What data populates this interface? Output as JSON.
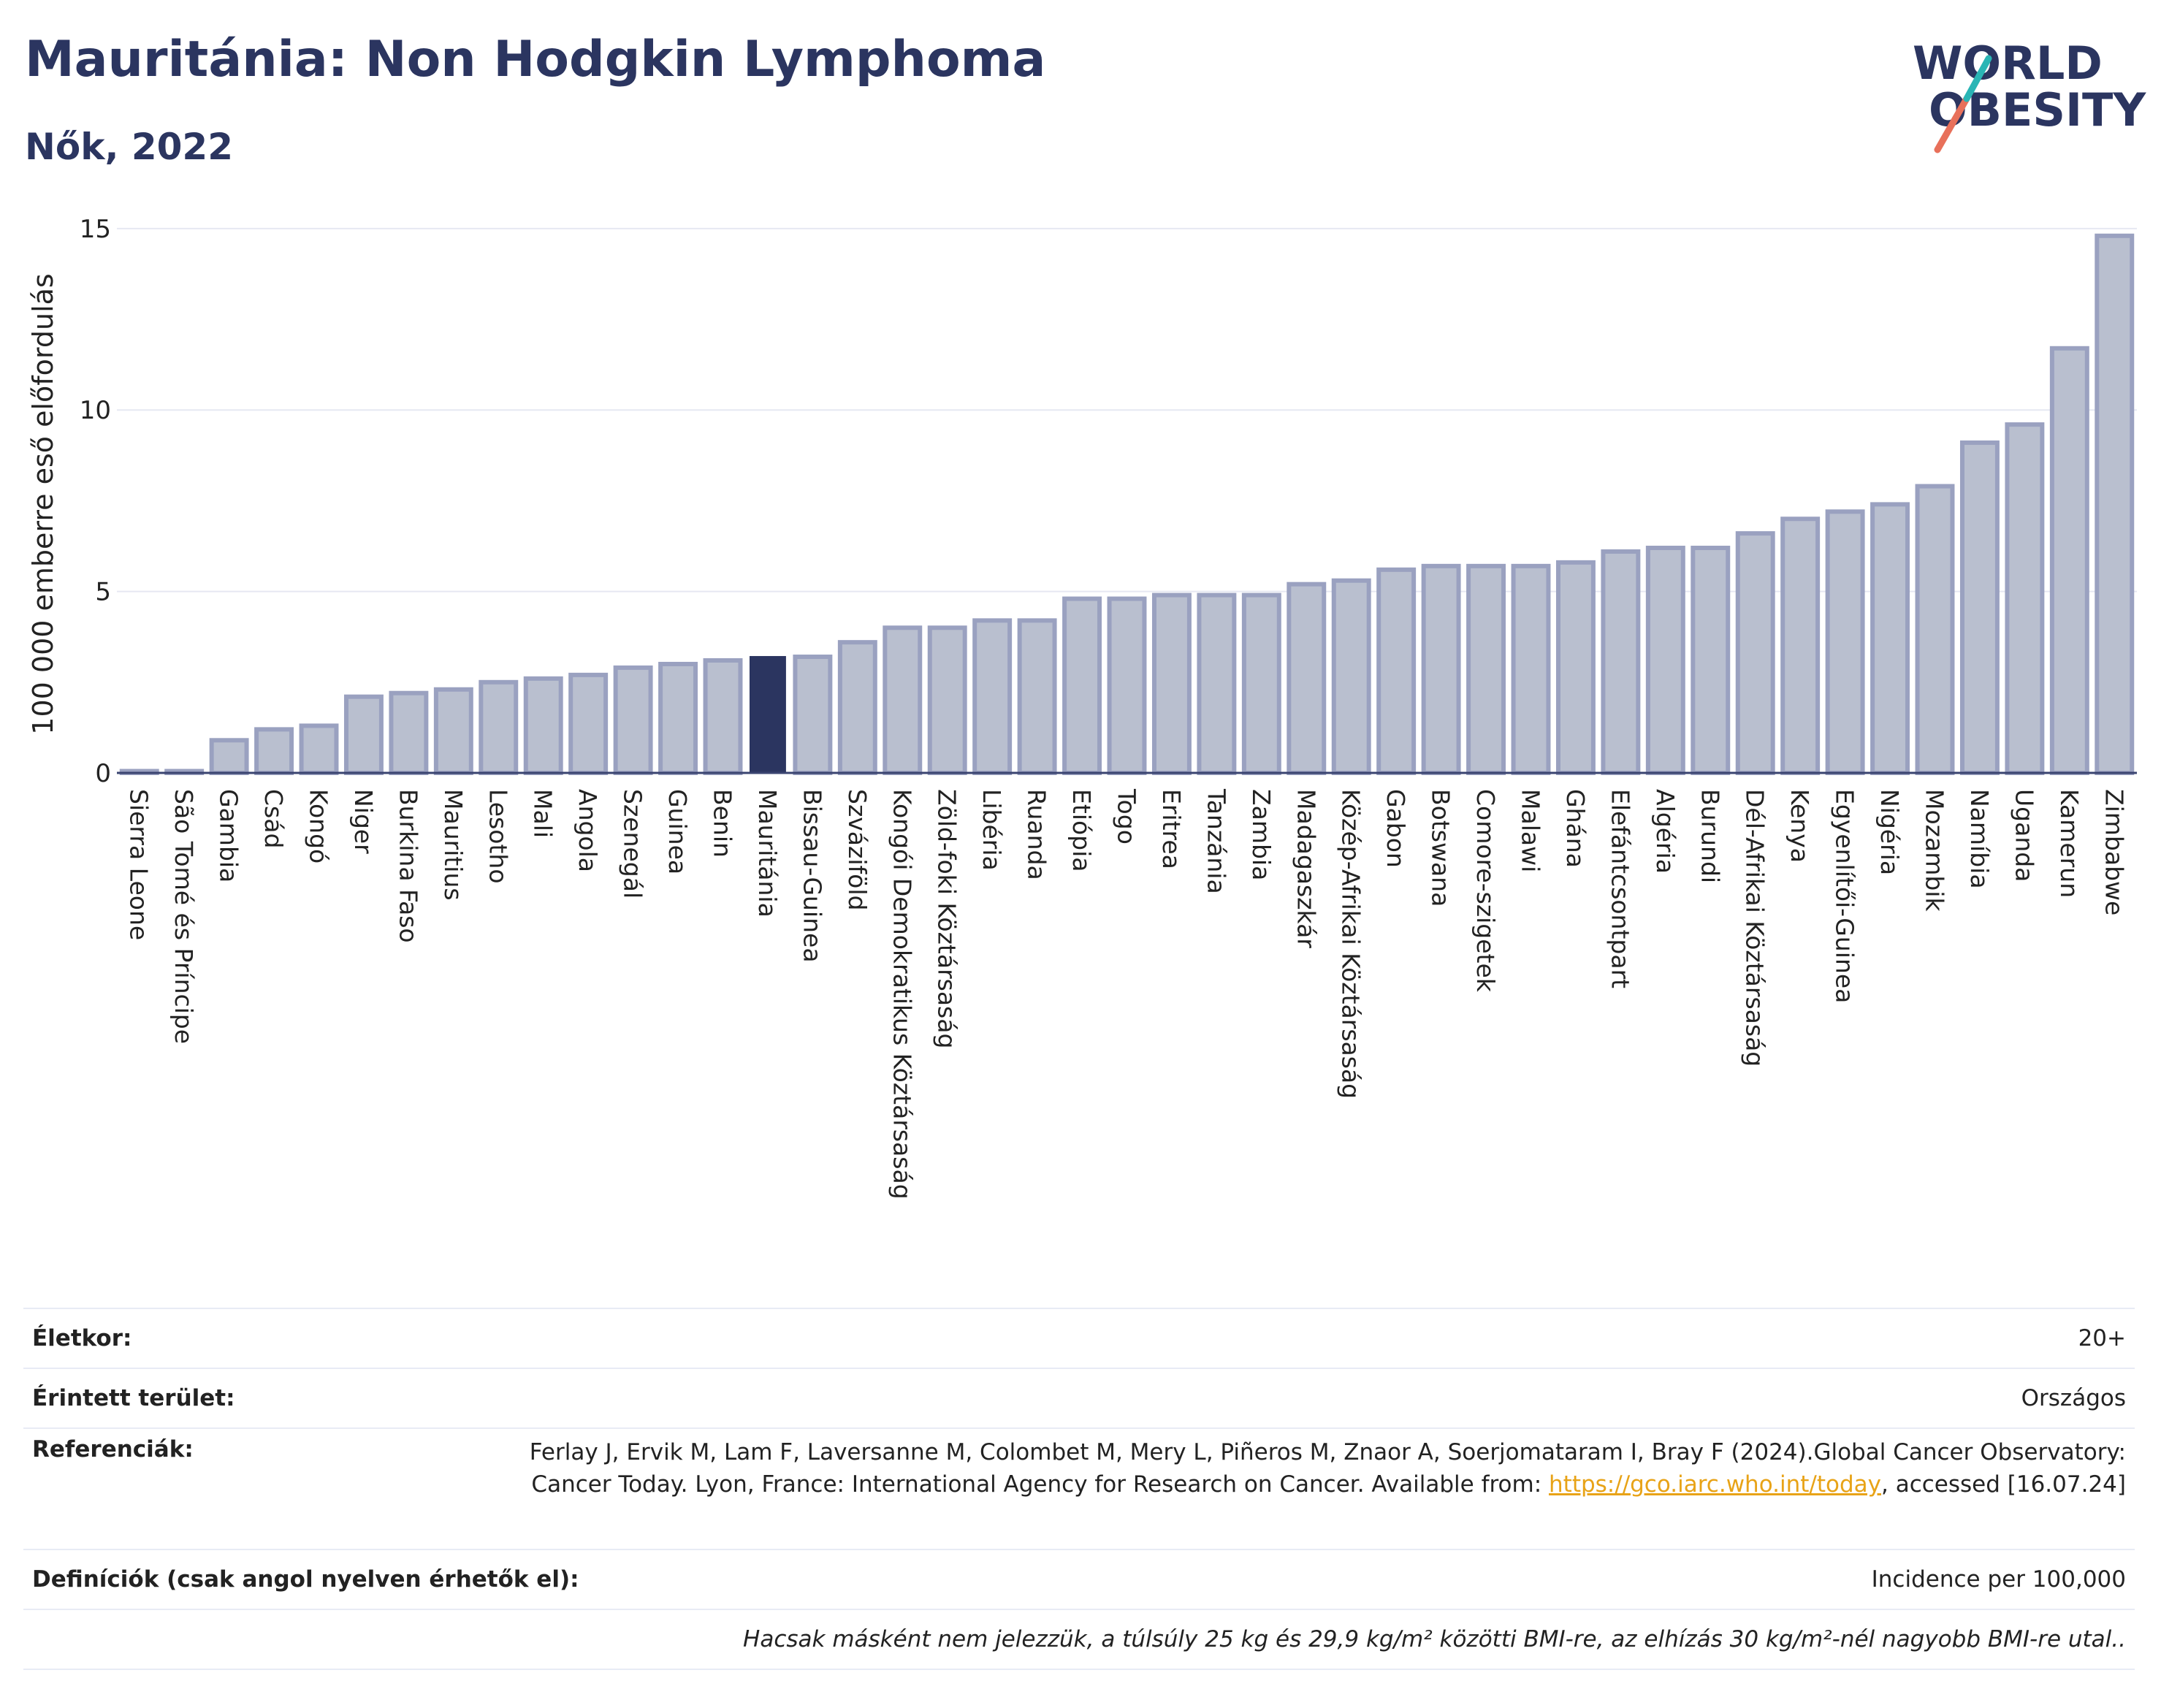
{
  "header": {
    "title": "Mauritánia: Non Hodgkin Lymphoma",
    "subtitle": "Nők, 2022"
  },
  "logo": {
    "line1": "WORLD",
    "line2": "OBESITY"
  },
  "colors": {
    "bar": "#b9bfcf",
    "bar_border": "#9aa1c0",
    "highlight": "#2b3560",
    "title": "#2b3560",
    "grid": "#e6e8f2",
    "link": "#e8a317"
  },
  "chart_data": {
    "type": "bar",
    "ylabel": "100 000 emberre eső előfordulás",
    "ylim": [
      0,
      15.5
    ],
    "yticks": [
      0,
      5,
      10,
      15
    ],
    "grid": true,
    "highlight": "Mauritánia",
    "categories": [
      "Sierra Leone",
      "São Tomé és Príncipe",
      "Gambia",
      "Csád",
      "Kongó",
      "Niger",
      "Burkina Faso",
      "Mauritius",
      "Lesotho",
      "Mali",
      "Angola",
      "Szenegál",
      "Guinea",
      "Benin",
      "Mauritánia",
      "Bissau-Guinea",
      "Szváziföld",
      "Kongói Demokratikus Köztársaság",
      "Zöld-foki Köztársaság",
      "Libéria",
      "Ruanda",
      "Etiópia",
      "Togo",
      "Eritrea",
      "Tanzánia",
      "Zambia",
      "Madagaszkár",
      "Közép-Afrikai Köztársaság",
      "Gabon",
      "Botswana",
      "Comore-szigetek",
      "Malawi",
      "Ghána",
      "Elefántcsontpart",
      "Algéria",
      "Burundi",
      "Dél-Afrikai Köztársaság",
      "Kenya",
      "Egyenlítői-Guinea",
      "Nigéria",
      "Mozambik",
      "Namíbia",
      "Uganda",
      "Kamerun",
      "Zimbabwe"
    ],
    "values": [
      0.05,
      0.05,
      0.9,
      1.2,
      1.3,
      2.1,
      2.2,
      2.3,
      2.5,
      2.6,
      2.7,
      2.9,
      3.0,
      3.1,
      3.2,
      3.2,
      3.6,
      4.0,
      4.0,
      4.2,
      4.2,
      4.8,
      4.8,
      4.9,
      4.9,
      4.9,
      5.2,
      5.3,
      5.6,
      5.7,
      5.7,
      5.7,
      5.8,
      6.1,
      6.2,
      6.2,
      6.6,
      7.0,
      7.2,
      7.4,
      7.9,
      9.1,
      9.6,
      11.7,
      14.8
    ]
  },
  "info": {
    "age_label": "Életkor:",
    "age_value": "20+",
    "area_label": "Érintett terület:",
    "area_value": "Országos",
    "ref_label": "Referenciák:",
    "ref_text_1": "Ferlay J, Ervik M, Lam F, Laversanne M, Colombet M, Mery L, Piñeros M, Znaor A, Soerjomataram I, Bray F (2024).Global Cancer Observatory: Cancer Today. Lyon, France: International Agency for Research on Cancer. Available from: ",
    "ref_link": "https://gco.iarc.who.int/today",
    "ref_text_2": ", accessed [16.07.24]",
    "def_label": "Definíciók (csak angol nyelven érhetők el):",
    "def_value": "Incidence per 100,000",
    "note": "Hacsak másként nem jelezzük, a túlsúly 25 kg és 29,9 kg/m² közötti BMI-re, az elhízás 30 kg/m²-nél nagyobb BMI-re utal.."
  }
}
